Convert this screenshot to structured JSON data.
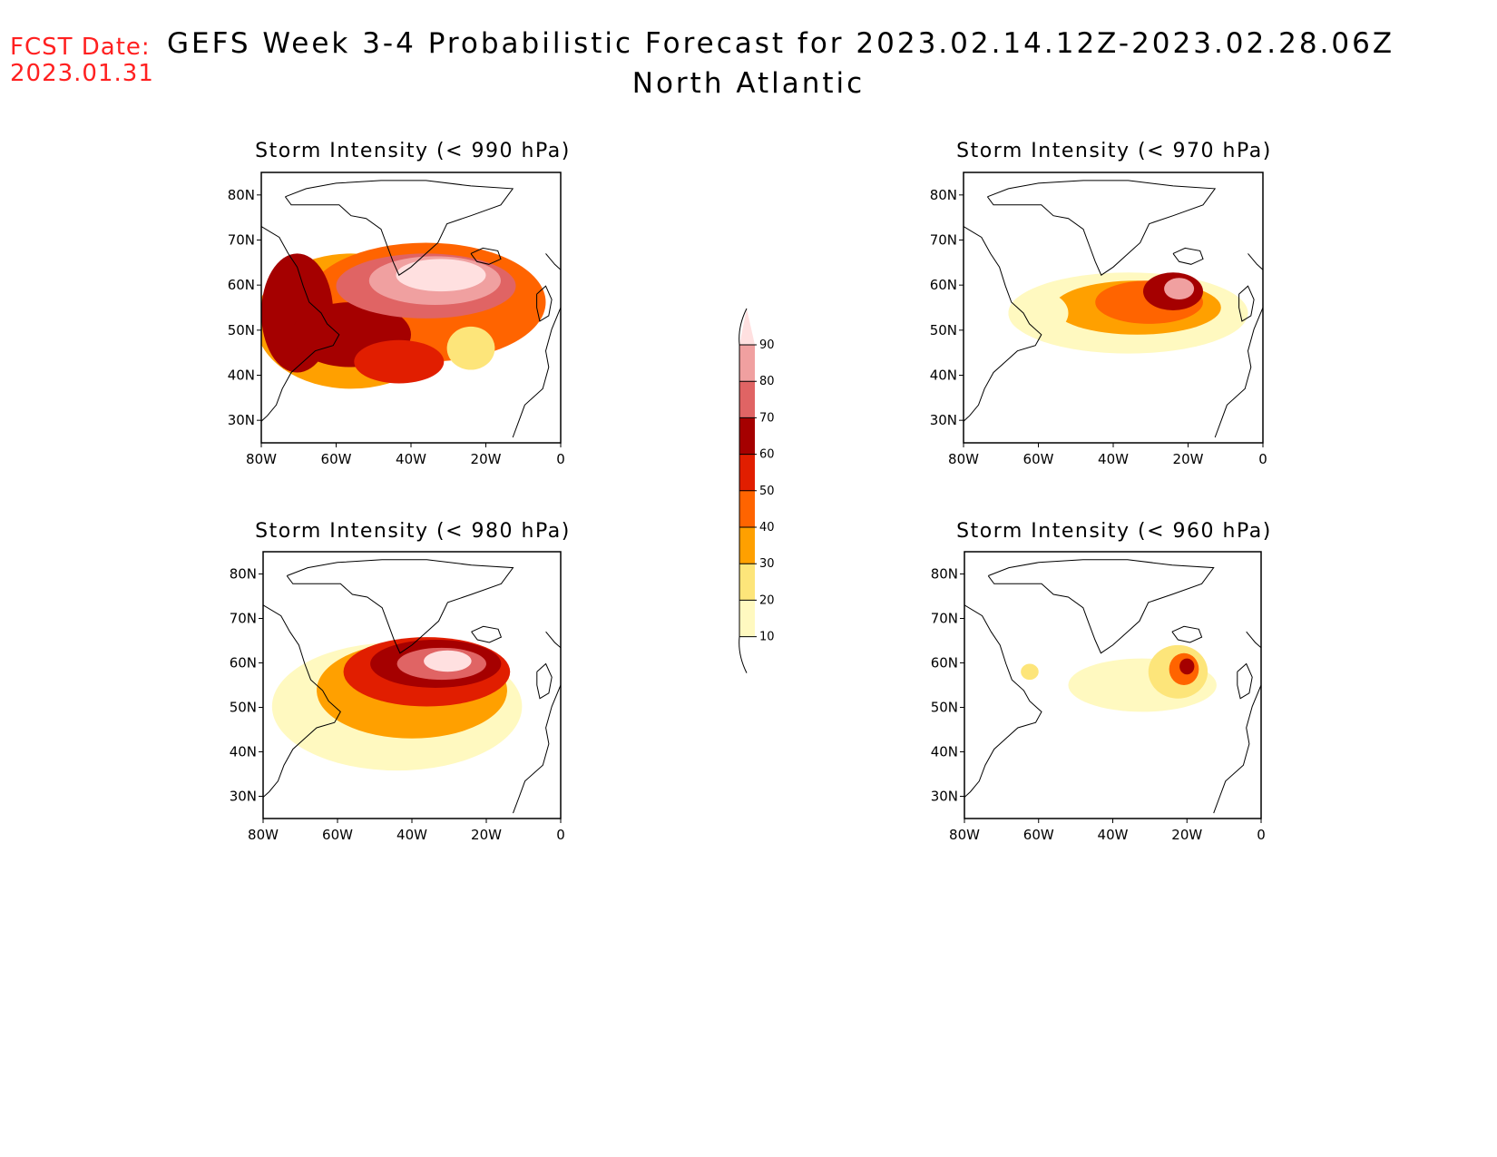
{
  "forecast_date": {
    "label": "FCST Date:",
    "value": "2023.01.31",
    "color": "#ff2020"
  },
  "title": {
    "line1": "GEFS Week 3-4 Probabilistic Forecast for 2023.02.14.12Z-2023.02.28.06Z",
    "line2": "North Atlantic"
  },
  "axes": {
    "lat_labels": [
      "80N",
      "70N",
      "60N",
      "50N",
      "40N",
      "30N"
    ],
    "lon_labels": [
      "80W",
      "60W",
      "40W",
      "20W",
      "0"
    ]
  },
  "panels": [
    {
      "title": "Storm Intensity (< 990 hPa)",
      "threshold_hPa": 990,
      "coverage": "widespread"
    },
    {
      "title": "Storm Intensity (< 970 hPa)",
      "threshold_hPa": 970,
      "coverage": "moderate"
    },
    {
      "title": "Storm Intensity (< 980 hPa)",
      "threshold_hPa": 980,
      "coverage": "broad"
    },
    {
      "title": "Storm Intensity (< 960 hPa)",
      "threshold_hPa": 960,
      "coverage": "limited"
    }
  ],
  "colorbar": {
    "levels": [
      "10",
      "20",
      "30",
      "40",
      "50",
      "60",
      "70",
      "80",
      "90"
    ],
    "colors": [
      "#fff9c0",
      "#fde57a",
      "#ffa000",
      "#ff6400",
      "#e11e00",
      "#a50000",
      "#e06464",
      "#f0a0a0",
      "#ffe0e0"
    ]
  },
  "map_colors": {
    "coastline": "#000000",
    "frame": "#000000"
  }
}
